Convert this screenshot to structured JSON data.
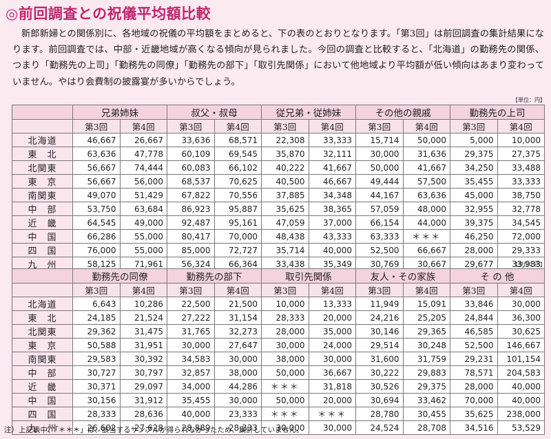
{
  "title": "◎前回調査との祝儀平均額比較",
  "intro": "新郎新婦との関係別に、各地域の祝儀の平均額をまとめると、下の表のとおりとなります。「第3回」は前回調査の集計結果になります。前回調査では、中部・近畿地域が高くなる傾向が見られました。今回の調査と比較すると、「北海道」の勤務先の関係、つまり「勤務先の上司」「勤務先の同僚」「勤務先の部下」「取引先関係」において他地域より平均額が低い傾向はあまり変わっていません。やはり会費制の披露宴が多いからでしょう。",
  "unit_label": "【単位：円】",
  "sub_headers": [
    "第3回",
    "第4回"
  ],
  "regions": [
    "北海道",
    "東　北",
    "北関東",
    "東　京",
    "南関東",
    "中　部",
    "近　畿",
    "中　国",
    "四　国",
    "九　州"
  ],
  "table1": {
    "groups": [
      "兄弟姉妹",
      "叔父・叔母",
      "従兄弟・従姉妹",
      "その他の親戚",
      "勤務先の上司"
    ],
    "rows": [
      [
        "46,667",
        "26,667",
        "33,636",
        "68,571",
        "22,308",
        "33,333",
        "15,714",
        "50,000",
        "5,000",
        "10,000"
      ],
      [
        "63,636",
        "47,778",
        "60,109",
        "69,545",
        "35,870",
        "32,111",
        "30,000",
        "31,636",
        "29,375",
        "27,375"
      ],
      [
        "56,667",
        "74,444",
        "60,083",
        "66,102",
        "40,222",
        "41,667",
        "50,000",
        "41,667",
        "34,250",
        "33,488"
      ],
      [
        "56,667",
        "56,000",
        "68,537",
        "70,625",
        "40,500",
        "46,667",
        "49,444",
        "57,500",
        "35,455",
        "33,333"
      ],
      [
        "49,070",
        "51,429",
        "67,822",
        "70,556",
        "37,885",
        "34,348",
        "44,167",
        "63,636",
        "45,000",
        "38,750"
      ],
      [
        "53,750",
        "63,684",
        "86,923",
        "95,887",
        "35,625",
        "38,365",
        "57,059",
        "48,000",
        "32,955",
        "32,778"
      ],
      [
        "64,545",
        "49,000",
        "92,487",
        "95,161",
        "47,059",
        "37,000",
        "66,154",
        "44,000",
        "39,375",
        "34,545"
      ],
      [
        "66,286",
        "55,000",
        "80,417",
        "70,000",
        "48,438",
        "43,333",
        "63,333",
        "＊＊＊",
        "46,250",
        "72,000"
      ],
      [
        "76,000",
        "55,000",
        "85,000",
        "72,727",
        "35,714",
        "40,000",
        "52,500",
        "66,667",
        "28,000",
        "29,333"
      ],
      [
        "58,125",
        "71,961",
        "56,324",
        "66,364",
        "33,438",
        "35,349",
        "30,769",
        "30,667",
        "29,677",
        "33,983"
      ]
    ]
  },
  "table2": {
    "groups": [
      "勤務先の同僚",
      "勤務先の部下",
      "取引先関係",
      "友人・その家族",
      "そ の 他"
    ],
    "rows": [
      [
        "6,643",
        "10,286",
        "22,500",
        "21,500",
        "10,000",
        "13,333",
        "11,949",
        "15,091",
        "33,846",
        "30,000"
      ],
      [
        "24,185",
        "21,524",
        "27,222",
        "31,154",
        "28,333",
        "20,000",
        "24,216",
        "25,205",
        "24,844",
        "36,300"
      ],
      [
        "29,362",
        "31,475",
        "31,765",
        "32,273",
        "28,000",
        "35,000",
        "30,146",
        "29,365",
        "46,585",
        "30,625"
      ],
      [
        "50,588",
        "31,951",
        "30,000",
        "27,647",
        "30,000",
        "24,000",
        "29,514",
        "30,248",
        "52,500",
        "146,667"
      ],
      [
        "29,583",
        "30,392",
        "34,583",
        "30,000",
        "38,000",
        "30,000",
        "31,600",
        "31,759",
        "29,231",
        "101,154"
      ],
      [
        "30,727",
        "30,797",
        "32,857",
        "38,000",
        "50,000",
        "36,667",
        "30,222",
        "29,883",
        "78,571",
        "204,583"
      ],
      [
        "30,371",
        "29,097",
        "34,000",
        "44,286",
        "＊＊＊",
        "31,818",
        "30,526",
        "29,375",
        "28,000",
        "40,000"
      ],
      [
        "30,156",
        "31,912",
        "35,455",
        "30,000",
        "50,000",
        "20,000",
        "30,694",
        "33,462",
        "70,000",
        "40,000"
      ],
      [
        "28,333",
        "28,636",
        "40,000",
        "23,333",
        "＊＊＊",
        "＊＊＊",
        "28,780",
        "30,455",
        "35,625",
        "238,000"
      ],
      [
        "26,602",
        "27,628",
        "28,889",
        "28,333",
        "30,000",
        "30,000",
        "24,524",
        "28,708",
        "34,516",
        "53,529"
      ]
    ]
  },
  "note": "注）上記表中、「＊＊＊」は、該当するサンプルが得られなかったため、集計していません。"
}
